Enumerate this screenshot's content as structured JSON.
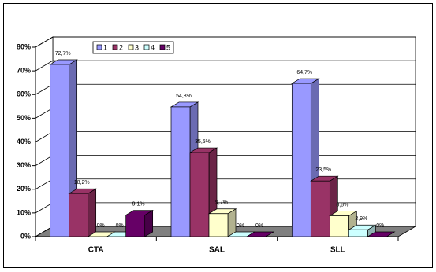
{
  "chart_data": {
    "type": "bar3d",
    "categories": [
      "CTA",
      "SAL",
      "SLL"
    ],
    "series": [
      {
        "name": "1",
        "color": "#9999ff",
        "values": [
          72.7,
          54.8,
          64.7
        ],
        "value_labels": [
          "72,7%",
          "54,8%",
          "64,7%"
        ]
      },
      {
        "name": "2",
        "color": "#993366",
        "values": [
          18.2,
          35.5,
          23.5
        ],
        "value_labels": [
          "18,2%",
          "35,5%",
          "23,5%"
        ]
      },
      {
        "name": "3",
        "color": "#ffffcc",
        "values": [
          0,
          9.7,
          8.8
        ],
        "value_labels": [
          "0%",
          "9,7%",
          "8,8%"
        ]
      },
      {
        "name": "4",
        "color": "#ccffff",
        "values": [
          0,
          0,
          2.9
        ],
        "value_labels": [
          "0%",
          "0%",
          "2,9%"
        ]
      },
      {
        "name": "5",
        "color": "#660066",
        "values": [
          9.1,
          0,
          0
        ],
        "value_labels": [
          "9,1%",
          "0%",
          "0%"
        ]
      }
    ],
    "ylim": [
      0,
      80
    ],
    "yticks": [
      {
        "value": 0,
        "label": "0%"
      },
      {
        "value": 10,
        "label": "10%"
      },
      {
        "value": 20,
        "label": "20%"
      },
      {
        "value": 30,
        "label": "30%"
      },
      {
        "value": 40,
        "label": "40%"
      },
      {
        "value": 50,
        "label": "50%"
      },
      {
        "value": 60,
        "label": "60%"
      },
      {
        "value": 70,
        "label": "70%"
      },
      {
        "value": 80,
        "label": "80%"
      }
    ],
    "grid": true,
    "legend": "top-left",
    "floor_color": "#808080"
  }
}
